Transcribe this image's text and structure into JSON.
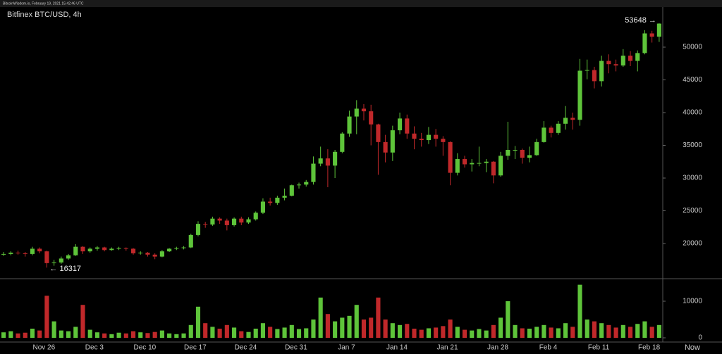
{
  "header": "BitcoinWisdom.io, February 19, 2021 15:42:46 UTC",
  "chart_data": {
    "type": "candlestick",
    "title": "Bitfinex BTC/USD, 4h",
    "up_color": "#5ec43a",
    "down_color": "#c0282a",
    "open": [
      18300,
      18400,
      18600,
      18500,
      18400,
      19200,
      18800,
      17000,
      17100,
      17700,
      18200,
      19500,
      18800,
      19200,
      19400,
      19000,
      19200,
      19300,
      19200,
      18500,
      18600,
      18300,
      18000,
      18800,
      19200,
      19300,
      19400,
      21300,
      23000,
      22900,
      23800,
      23500,
      22800,
      23800,
      23200,
      23700,
      24700,
      26400,
      26200,
      27000,
      27300,
      28900,
      29000,
      29400,
      32200,
      33000,
      31900,
      34000,
      36800,
      39400,
      40600,
      40200,
      38200,
      35500,
      33900,
      37300,
      39100,
      36800,
      36000,
      35800,
      36600,
      36000,
      35500,
      30800,
      32900,
      32100,
      32300,
      32300,
      32500,
      30400,
      33400,
      34300,
      34300,
      33100,
      33500,
      35500,
      37700,
      36900,
      38300,
      39200,
      38900,
      46400,
      46500,
      44800,
      47900,
      47400,
      47200,
      48700,
      47900,
      49100,
      52100,
      51600
    ],
    "high": [
      18700,
      18800,
      18900,
      18700,
      19500,
      19400,
      18900,
      17500,
      18000,
      18400,
      19900,
      19600,
      19400,
      19600,
      19500,
      19400,
      19500,
      19400,
      19300,
      18800,
      18700,
      18500,
      19000,
      19300,
      19500,
      19600,
      21500,
      23400,
      23300,
      24100,
      24000,
      23800,
      24000,
      24100,
      24000,
      24900,
      26900,
      27000,
      27300,
      28400,
      29000,
      29300,
      29700,
      33300,
      34800,
      34400,
      34300,
      37000,
      40300,
      41900,
      41300,
      41200,
      38300,
      36600,
      38000,
      40000,
      39700,
      37900,
      36900,
      37800,
      37500,
      36400,
      35600,
      33800,
      33400,
      32900,
      34800,
      32900,
      32600,
      34000,
      38600,
      34900,
      34500,
      34800,
      36000,
      38700,
      38000,
      38700,
      41000,
      40000,
      48200,
      48100,
      47000,
      48700,
      48900,
      48100,
      49700,
      49400,
      49500,
      52600,
      52500,
      53648
    ],
    "low": [
      18100,
      18200,
      18300,
      18000,
      18200,
      18500,
      16317,
      16600,
      16900,
      17500,
      18100,
      18400,
      18600,
      18900,
      18800,
      18900,
      19000,
      18900,
      18300,
      18300,
      18000,
      17600,
      17900,
      18700,
      19000,
      19100,
      19300,
      21100,
      22400,
      22700,
      23000,
      22000,
      22600,
      22800,
      23000,
      23500,
      24500,
      25800,
      25900,
      26600,
      27200,
      28400,
      28700,
      29000,
      31800,
      28600,
      30000,
      33800,
      36300,
      36700,
      38800,
      35000,
      30500,
      32400,
      32600,
      36700,
      36000,
      34400,
      34800,
      35200,
      34800,
      33400,
      28900,
      30400,
      31600,
      31000,
      31800,
      30900,
      29200,
      30200,
      32800,
      32900,
      32200,
      32400,
      33400,
      35400,
      36200,
      36600,
      37400,
      37400,
      38000,
      45100,
      43700,
      44000,
      46000,
      46300,
      47000,
      47100,
      46300,
      48900,
      50700,
      50800
    ],
    "close": [
      18400,
      18600,
      18500,
      18400,
      19200,
      18800,
      17000,
      17100,
      17700,
      18200,
      19500,
      18800,
      19200,
      19400,
      19000,
      19200,
      19300,
      19200,
      18500,
      18600,
      18300,
      18000,
      18800,
      19200,
      19300,
      19400,
      21300,
      23000,
      22900,
      23800,
      23500,
      22800,
      23800,
      23200,
      23700,
      24700,
      26400,
      26200,
      27000,
      27300,
      28900,
      29000,
      29400,
      32200,
      33000,
      31900,
      34000,
      36800,
      39400,
      40600,
      40200,
      38200,
      35500,
      33900,
      37300,
      39100,
      36800,
      36000,
      35800,
      36600,
      36000,
      35500,
      30800,
      32900,
      32100,
      32300,
      32300,
      32500,
      30400,
      33400,
      34300,
      34300,
      33100,
      33500,
      35500,
      37700,
      36900,
      38300,
      39200,
      38900,
      46400,
      46500,
      44800,
      47900,
      47400,
      47200,
      48700,
      47900,
      49100,
      52100,
      51600,
      53600
    ],
    "volume": [
      1500,
      1800,
      1200,
      1400,
      2500,
      2000,
      11500,
      4500,
      2000,
      1800,
      3000,
      9000,
      2200,
      1500,
      1200,
      1000,
      1400,
      1200,
      1800,
      1500,
      1300,
      1600,
      2000,
      1200,
      1000,
      1200,
      3500,
      8500,
      4000,
      3000,
      2500,
      3500,
      2800,
      1800,
      1600,
      2500,
      4000,
      3000,
      2400,
      2800,
      3500,
      2400,
      2600,
      5000,
      11000,
      6500,
      4500,
      5500,
      6000,
      9000,
      5000,
      5500,
      11000,
      5000,
      4000,
      3500,
      3800,
      2500,
      2200,
      2600,
      2800,
      3200,
      5000,
      3000,
      2200,
      2000,
      2400,
      2000,
      3500,
      5500,
      10000,
      3500,
      2600,
      2500,
      3000,
      3500,
      2800,
      2600,
      4000,
      3000,
      14500,
      5000,
      4500,
      4000,
      3500,
      2800,
      3500,
      3000,
      3800,
      4500,
      3000,
      3500
    ],
    "ylim": [
      14730,
      56130
    ],
    "yticks": [
      20000,
      25000,
      30000,
      35000,
      40000,
      45000,
      50000
    ],
    "volume_ylim": [
      0,
      15770
    ],
    "volume_yticks": [
      0,
      10000
    ],
    "xtick_labels": [
      "Nov 26",
      "Dec 3",
      "Dec 10",
      "Dec 17",
      "Dec 24",
      "Dec 31",
      "Jan 7",
      "Jan 14",
      "Jan 21",
      "Jan 28",
      "Feb 4",
      "Feb 11",
      "Feb 18"
    ],
    "now_label": "Now",
    "high_annotation": "53648 →",
    "low_annotation": "← 16317"
  }
}
